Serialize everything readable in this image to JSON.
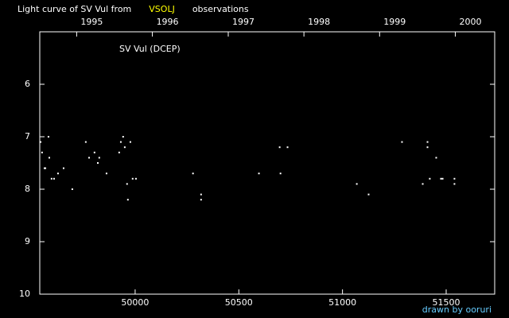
{
  "chart_data": {
    "type": "scatter",
    "title": [
      {
        "text": "Light curve of SV Vul from",
        "color": "#ffffff"
      },
      {
        "text": "VSOLJ",
        "color": "#ffff00"
      },
      {
        "text": "observations",
        "color": "#ffffff"
      }
    ],
    "annotation": "SV Vul (DCEP)",
    "credit": "drawn by ooruri",
    "credit_color": "#66ccff",
    "xlim": [
      49540,
      51734
    ],
    "xticks": [
      50000,
      50500,
      51000,
      51500
    ],
    "x2ticks": [
      {
        "value": 49718,
        "label": "1995"
      },
      {
        "value": 50083,
        "label": "1996"
      },
      {
        "value": 50449,
        "label": "1997"
      },
      {
        "value": 50814,
        "label": "1998"
      },
      {
        "value": 51179,
        "label": "1999"
      },
      {
        "value": 51544,
        "label": "2000"
      }
    ],
    "ylim": [
      10,
      5
    ],
    "yticks": [
      6,
      7,
      8,
      9,
      10
    ],
    "series": [
      {
        "color": "#ffffff",
        "x": [
          49544,
          49551,
          49563,
          49567,
          49582,
          49586,
          49597,
          49609,
          49628,
          49655,
          49697,
          49762,
          49778,
          49804,
          49820,
          49827,
          49862,
          49923,
          49931,
          49942,
          49950,
          49961,
          49965,
          49977,
          49988,
          50004,
          50279,
          50318,
          50318,
          50597,
          50697,
          50701,
          50735,
          51069,
          51126,
          51287,
          51387,
          51410,
          51410,
          51421,
          51452,
          51475,
          51483,
          51540,
          51540
        ],
        "values": [
          7.1,
          7.3,
          7.6,
          7.6,
          7.0,
          7.4,
          7.8,
          7.8,
          7.7,
          7.6,
          8.0,
          7.1,
          7.4,
          7.3,
          7.5,
          7.4,
          7.7,
          7.3,
          7.1,
          7.0,
          7.2,
          7.9,
          8.2,
          7.1,
          7.8,
          7.8,
          7.7,
          8.1,
          8.2,
          7.7,
          7.2,
          7.7,
          7.2,
          7.9,
          8.1,
          7.1,
          7.9,
          7.1,
          7.2,
          7.8,
          7.4,
          7.8,
          7.8,
          7.8,
          7.9
        ]
      }
    ]
  }
}
